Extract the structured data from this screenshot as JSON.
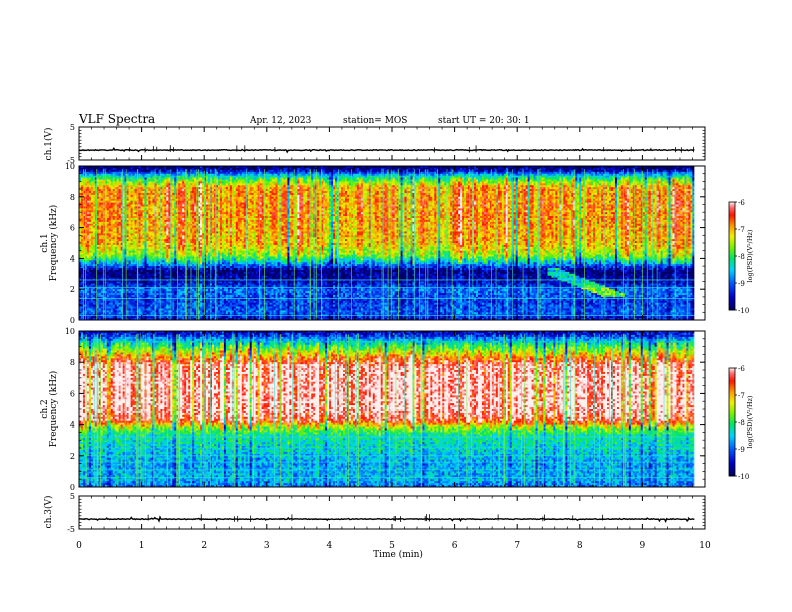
{
  "header": {
    "title": "VLF Spectra",
    "date": "Apr. 12, 2023",
    "station": "station= MOS",
    "start": "start  UT =   20: 30: 1"
  },
  "chart_data": [
    {
      "type": "line",
      "panel": "waveform-ch1",
      "ylabel": "ch.1(V)",
      "ylim": [
        -5,
        5
      ],
      "yticks": [
        "5",
        "-5"
      ],
      "baseline": -2,
      "xlim": [
        0,
        10
      ]
    },
    {
      "type": "heatmap",
      "panel": "spectrogram-ch1",
      "ylabel": "ch.1\nFrequency (kHz)",
      "ylim": [
        0,
        10
      ],
      "yticks": [
        "0",
        "2",
        "4",
        "6",
        "8",
        "10"
      ],
      "xlim": [
        0,
        10
      ],
      "data_extent_min": 9.83,
      "colorbar": {
        "label": "log(PSD)(V²/Hz)",
        "range": [
          -10,
          -6
        ],
        "ticks": [
          "-6",
          "-7",
          "-8",
          "-9",
          "-10"
        ]
      },
      "band_profile_khz": [
        [
          0,
          -9.5
        ],
        [
          0.5,
          -9.0
        ],
        [
          1.2,
          -9.2
        ],
        [
          2.0,
          -8.9
        ],
        [
          2.5,
          -9.6
        ],
        [
          3.2,
          -9.8
        ],
        [
          3.7,
          -8.6
        ],
        [
          4.2,
          -7.6
        ],
        [
          5.0,
          -7.0
        ],
        [
          6.0,
          -6.9
        ],
        [
          7.5,
          -6.8
        ],
        [
          8.6,
          -6.9
        ],
        [
          9.0,
          -7.6
        ],
        [
          9.4,
          -8.5
        ],
        [
          9.7,
          -9.6
        ],
        [
          10,
          -9.9
        ]
      ],
      "tone_lines_khz": [
        0.3,
        1.4,
        2.1,
        2.6
      ]
    },
    {
      "type": "heatmap",
      "panel": "spectrogram-ch2",
      "ylabel": "ch.2\nFrequency (kHz)",
      "ylim": [
        0,
        10
      ],
      "yticks": [
        "0",
        "2",
        "4",
        "6",
        "8",
        "10"
      ],
      "xlim": [
        0,
        10
      ],
      "data_extent_min": 9.83,
      "colorbar": {
        "label": "log(PSD)(V²/Hz)",
        "range": [
          -10,
          -6
        ],
        "ticks": [
          "-6",
          "-7",
          "-8",
          "-9",
          "-10"
        ]
      },
      "band_profile_khz": [
        [
          0,
          -9.0
        ],
        [
          0.5,
          -8.6
        ],
        [
          1.5,
          -8.7
        ],
        [
          2.5,
          -8.4
        ],
        [
          3.3,
          -8.2
        ],
        [
          3.8,
          -7.6
        ],
        [
          4.3,
          -6.3
        ],
        [
          5.0,
          -6.0
        ],
        [
          6.5,
          -6.0
        ],
        [
          7.8,
          -6.1
        ],
        [
          8.3,
          -6.8
        ],
        [
          8.8,
          -7.6
        ],
        [
          9.3,
          -8.4
        ],
        [
          9.7,
          -9.2
        ],
        [
          10,
          -9.6
        ]
      ],
      "tone_lines_khz": [
        0.6,
        1.1,
        1.6,
        2.0,
        2.5,
        3.2
      ]
    },
    {
      "type": "line",
      "panel": "waveform-ch3",
      "ylabel": "ch.3(V)",
      "ylim": [
        -5,
        5
      ],
      "yticks": [
        "5",
        "-5"
      ],
      "baseline": -2,
      "xlim": [
        0,
        10
      ]
    }
  ],
  "xaxis": {
    "label": "Time  (min)",
    "ticks": [
      "0",
      "1",
      "2",
      "3",
      "4",
      "5",
      "6",
      "7",
      "8",
      "9",
      "10"
    ]
  },
  "colors": {
    "axis": "#000000",
    "background": "#ffffff"
  }
}
